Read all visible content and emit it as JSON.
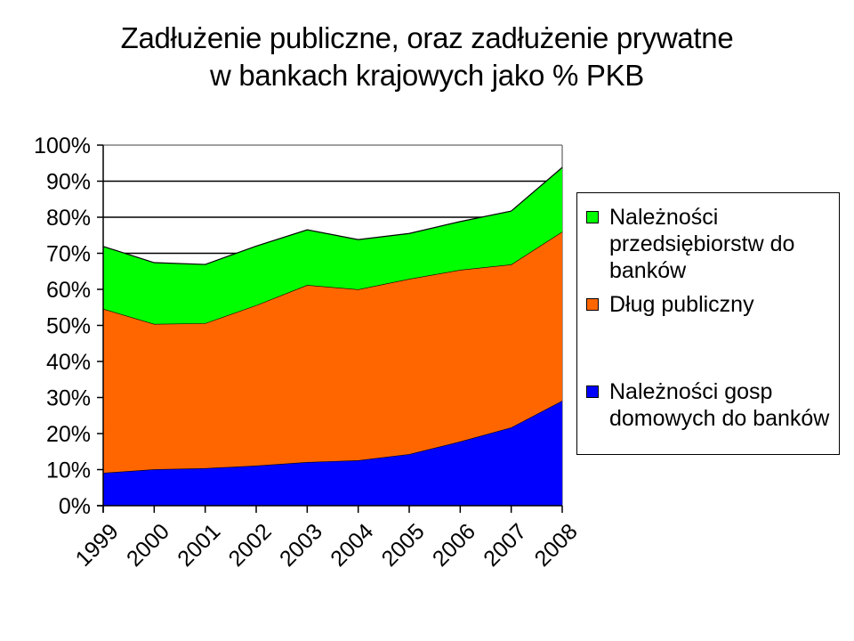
{
  "title": {
    "line1": "Zadłużenie publiczne, oraz zadłużenie prywatne",
    "line2": "w bankach krajowych jako % PKB"
  },
  "legend": {
    "items": [
      {
        "label": "Należności\nprzedsiębiorstw do\nbanków",
        "color": "#00FF00"
      },
      {
        "label": "Dług publiczny",
        "color": "#FF6600"
      },
      {
        "label": "Należności gosp\ndomowych do banków",
        "color": "#0000FF"
      }
    ]
  },
  "y_axis": {
    "ticks": [
      "0%",
      "10%",
      "20%",
      "30%",
      "40%",
      "50%",
      "60%",
      "70%",
      "80%",
      "90%",
      "100%"
    ]
  },
  "x_axis": {
    "ticks": [
      "1999",
      "2000",
      "2001",
      "2002",
      "2003",
      "2004",
      "2005",
      "2006",
      "2007",
      "2008"
    ]
  },
  "chart_data": {
    "type": "area",
    "stacked": true,
    "title": "Zadłużenie publiczne, oraz zadłużenie prywatne w bankach krajowych jako % PKB",
    "xlabel": "",
    "ylabel": "",
    "ylim": [
      0,
      100
    ],
    "y_format": "percent",
    "grid": {
      "horizontal": true,
      "vertical": false
    },
    "legend_position": "right",
    "categories": [
      "1999",
      "2000",
      "2001",
      "2002",
      "2003",
      "2004",
      "2005",
      "2006",
      "2007",
      "2008"
    ],
    "series": [
      {
        "name": "Należności gosp domowych do banków",
        "color": "#0000FF",
        "values": [
          9.1,
          10.1,
          10.4,
          11.1,
          12.1,
          12.6,
          14.3,
          17.8,
          21.7,
          29.1
        ]
      },
      {
        "name": "Dług publiczny",
        "color": "#FF6600",
        "values": [
          45.5,
          40.3,
          40.2,
          44.5,
          49.1,
          47.4,
          48.6,
          47.6,
          45.2,
          46.9
        ]
      },
      {
        "name": "Należności przedsiębiorstw do banków",
        "color": "#00FF00",
        "values": [
          17.3,
          17.0,
          16.3,
          16.4,
          15.3,
          13.8,
          12.6,
          13.4,
          14.8,
          17.8
        ]
      }
    ]
  }
}
